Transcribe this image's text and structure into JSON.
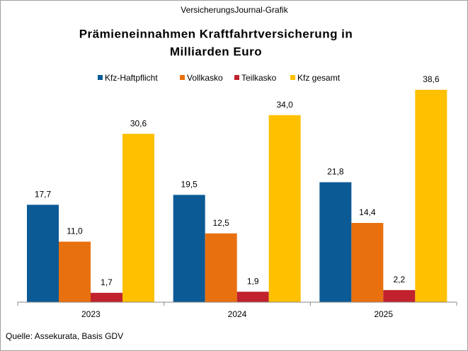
{
  "chart_data": {
    "type": "bar",
    "source_label": "VersicherungsJournal-Grafik",
    "title": [
      "Prämieneinnahmen  Kraftfahrtversicherung  in",
      "Milliarden Euro"
    ],
    "categories": [
      "2023",
      "2024",
      "2025"
    ],
    "series": [
      {
        "name": "Kfz-Haftpflicht",
        "color": "#0b5a95",
        "values": [
          17.7,
          19.5,
          21.8
        ],
        "value_labels": [
          "17,7",
          "19,5",
          "21,8"
        ]
      },
      {
        "name": "Vollkasko",
        "color": "#e8700e",
        "values": [
          11.0,
          12.5,
          14.4
        ],
        "value_labels": [
          "11,0",
          "12,5",
          "14,4"
        ]
      },
      {
        "name": "Teilkasko",
        "color": "#c1222d",
        "values": [
          1.7,
          1.9,
          2.2
        ],
        "value_labels": [
          "1,7",
          "1,9",
          "2,2"
        ]
      },
      {
        "name": "Kfz gesamt",
        "color": "#ffc000",
        "values": [
          30.6,
          34.0,
          38.6
        ],
        "value_labels": [
          "30,6",
          "34,0",
          "38,6"
        ]
      }
    ],
    "ylim": [
      0,
      40
    ],
    "footnote": "Quelle: Assekurata, Basis GDV"
  }
}
